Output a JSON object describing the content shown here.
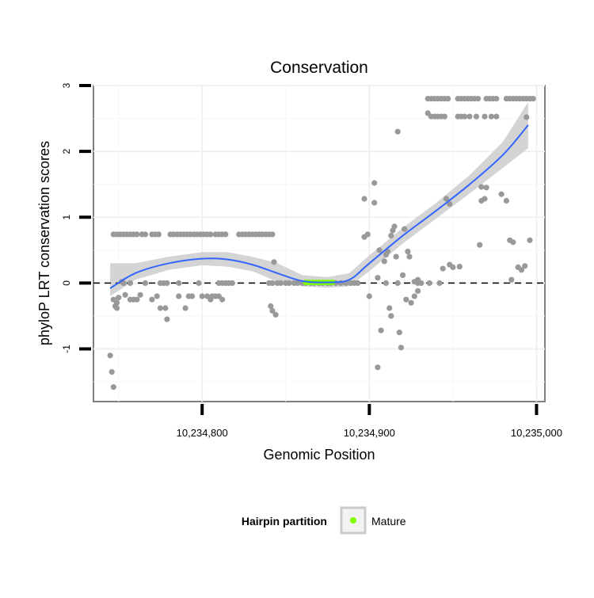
{
  "chart_data": {
    "type": "scatter",
    "title": "Conservation",
    "xlabel": "Genomic Position",
    "ylabel": "phyloP LRT conservation scores",
    "xlim": [
      10234735,
      10235005
    ],
    "ylim": [
      -1.8,
      3.0
    ],
    "x_ticks": [
      10234800,
      10234900,
      10235000
    ],
    "x_tick_labels": [
      "10,234,800",
      "10,234,900",
      "10,235,000"
    ],
    "y_ticks": [
      -1,
      0,
      1,
      2,
      3
    ],
    "y_tick_labels": [
      "-1",
      "0",
      "1",
      "2",
      "3"
    ],
    "grid": true,
    "reference_line": {
      "y": 0,
      "style": "dashed"
    },
    "series": [
      {
        "kind": "points",
        "color": "#999999",
        "points": [
          [
            10234747,
            0.74
          ],
          [
            10234749,
            0.74
          ],
          [
            10234751,
            0.74
          ],
          [
            10234753,
            0.74
          ],
          [
            10234755,
            0.74
          ],
          [
            10234757,
            0.74
          ],
          [
            10234759,
            0.74
          ],
          [
            10234761,
            0.74
          ],
          [
            10234764,
            0.74
          ],
          [
            10234766,
            0.74
          ],
          [
            10234770,
            0.74
          ],
          [
            10234772,
            0.74
          ],
          [
            10234774,
            0.74
          ],
          [
            10234781,
            0.74
          ],
          [
            10234783,
            0.74
          ],
          [
            10234785,
            0.74
          ],
          [
            10234787,
            0.74
          ],
          [
            10234789,
            0.74
          ],
          [
            10234791,
            0.74
          ],
          [
            10234793,
            0.74
          ],
          [
            10234795,
            0.74
          ],
          [
            10234797,
            0.74
          ],
          [
            10234799,
            0.74
          ],
          [
            10234801,
            0.74
          ],
          [
            10234803,
            0.74
          ],
          [
            10234805,
            0.74
          ],
          [
            10234808,
            0.74
          ],
          [
            10234810,
            0.74
          ],
          [
            10234812,
            0.74
          ],
          [
            10234814,
            0.74
          ],
          [
            10234822,
            0.74
          ],
          [
            10234824,
            0.74
          ],
          [
            10234826,
            0.74
          ],
          [
            10234828,
            0.74
          ],
          [
            10234830,
            0.74
          ],
          [
            10234832,
            0.74
          ],
          [
            10234834,
            0.74
          ],
          [
            10234836,
            0.74
          ],
          [
            10234838,
            0.74
          ],
          [
            10234840,
            0.74
          ],
          [
            10234842,
            0.74
          ],
          [
            10234753,
            0.0
          ],
          [
            10234757,
            0.0
          ],
          [
            10234766,
            0.0
          ],
          [
            10234775,
            0.0
          ],
          [
            10234777,
            0.0
          ],
          [
            10234779,
            0.0
          ],
          [
            10234786,
            0.0
          ],
          [
            10234798,
            0.0
          ],
          [
            10234810,
            0.0
          ],
          [
            10234812,
            0.0
          ],
          [
            10234814,
            0.0
          ],
          [
            10234816,
            0.0
          ],
          [
            10234818,
            0.0
          ],
          [
            10234840,
            0.0
          ],
          [
            10234842,
            0.0
          ],
          [
            10234845,
            0.0
          ],
          [
            10234847,
            0.0
          ],
          [
            10234850,
            0.0
          ],
          [
            10234852,
            0.0
          ],
          [
            10234855,
            0.0
          ],
          [
            10234857,
            0.0
          ],
          [
            10234860,
            0.0
          ],
          [
            10234862,
            0.0
          ],
          [
            10234865,
            0.0
          ],
          [
            10234867,
            0.0
          ],
          [
            10234870,
            0.0
          ],
          [
            10234872,
            0.0
          ],
          [
            10234875,
            0.0
          ],
          [
            10234877,
            0.0
          ],
          [
            10234880,
            0.0
          ],
          [
            10234883,
            0.0
          ],
          [
            10234886,
            0.0
          ],
          [
            10234889,
            0.0
          ],
          [
            10234891,
            0.0
          ],
          [
            10234893,
            0.0
          ],
          [
            10234910,
            0.0
          ],
          [
            10234917,
            0.0
          ],
          [
            10234929,
            0.0
          ],
          [
            10234931,
            0.0
          ],
          [
            10234942,
            0.0
          ],
          [
            10234747,
            -0.25
          ],
          [
            10234749,
            -0.3
          ],
          [
            10234750,
            -0.22
          ],
          [
            10234754,
            -0.18
          ],
          [
            10234757,
            -0.25
          ],
          [
            10234759,
            -0.25
          ],
          [
            10234761,
            -0.25
          ],
          [
            10234763,
            -0.18
          ],
          [
            10234770,
            -0.25
          ],
          [
            10234773,
            -0.2
          ],
          [
            10234775,
            -0.38
          ],
          [
            10234778,
            -0.38
          ],
          [
            10234779,
            -0.55
          ],
          [
            10234786,
            -0.2
          ],
          [
            10234790,
            -0.38
          ],
          [
            10234792,
            -0.2
          ],
          [
            10234794,
            -0.2
          ],
          [
            10234800,
            -0.2
          ],
          [
            10234803,
            -0.2
          ],
          [
            10234805,
            -0.25
          ],
          [
            10234806,
            -0.2
          ],
          [
            10234808,
            -0.2
          ],
          [
            10234810,
            -0.2
          ],
          [
            10234812,
            -0.25
          ],
          [
            10234841,
            -0.35
          ],
          [
            10234842,
            -0.42
          ],
          [
            10234844,
            -0.48
          ],
          [
            10234843,
            0.32
          ],
          [
            10234745,
            -1.1
          ],
          [
            10234746,
            -1.35
          ],
          [
            10234747,
            -1.58
          ],
          [
            10234748,
            -0.35
          ],
          [
            10234749,
            -0.38
          ],
          [
            10234752,
            0.02
          ],
          [
            10234897,
            0.7
          ],
          [
            10234899,
            0.74
          ],
          [
            10234897,
            1.28
          ],
          [
            10234903,
            1.22
          ],
          [
            10234903,
            1.52
          ],
          [
            10234906,
            0.5
          ],
          [
            10234905,
            0.08
          ],
          [
            10234900,
            -0.2
          ],
          [
            10234905,
            -1.28
          ],
          [
            10234907,
            -0.72
          ],
          [
            10234909,
            0.33
          ],
          [
            10234910,
            0.43
          ],
          [
            10234911,
            0.48
          ],
          [
            10234912,
            -0.38
          ],
          [
            10234913,
            -0.5
          ],
          [
            10234913,
            0.72
          ],
          [
            10234914,
            0.8
          ],
          [
            10234915,
            0.86
          ],
          [
            10234916,
            0.4
          ],
          [
            10234918,
            -0.75
          ],
          [
            10234919,
            -0.98
          ],
          [
            10234917,
            2.3
          ],
          [
            10234920,
            0.12
          ],
          [
            10234921,
            0.82
          ],
          [
            10234923,
            0.48
          ],
          [
            10234924,
            0.4
          ],
          [
            10234922,
            -0.25
          ],
          [
            10234925,
            -0.3
          ],
          [
            10234927,
            -0.2
          ],
          [
            10234929,
            0.05
          ],
          [
            10234927,
            0.02
          ],
          [
            10234929,
            -0.12
          ],
          [
            10234936,
            0.0
          ],
          [
            10234944,
            0.22
          ],
          [
            10234948,
            0.28
          ],
          [
            10234950,
            0.24
          ],
          [
            10234946,
            1.28
          ],
          [
            10234948,
            1.2
          ],
          [
            10234954,
            0.25
          ],
          [
            10234966,
            0.58
          ],
          [
            10234967,
            1.25
          ],
          [
            10234967,
            1.46
          ],
          [
            10234969,
            1.28
          ],
          [
            10234970,
            1.45
          ],
          [
            10234979,
            1.35
          ],
          [
            10234982,
            1.25
          ],
          [
            10234984,
            0.65
          ],
          [
            10234986,
            0.62
          ],
          [
            10234985,
            0.05
          ],
          [
            10234989,
            0.24
          ],
          [
            10234991,
            0.2
          ],
          [
            10234993,
            0.26
          ],
          [
            10234996,
            0.65
          ],
          [
            10234994,
            2.52
          ],
          [
            10234935,
            2.8
          ],
          [
            10234937,
            2.8
          ],
          [
            10234939,
            2.8
          ],
          [
            10234941,
            2.8
          ],
          [
            10234943,
            2.8
          ],
          [
            10234945,
            2.8
          ],
          [
            10234947,
            2.8
          ],
          [
            10234953,
            2.8
          ],
          [
            10234955,
            2.8
          ],
          [
            10234957,
            2.8
          ],
          [
            10234959,
            2.8
          ],
          [
            10234961,
            2.8
          ],
          [
            10234963,
            2.8
          ],
          [
            10234965,
            2.8
          ],
          [
            10234970,
            2.8
          ],
          [
            10234972,
            2.8
          ],
          [
            10234974,
            2.8
          ],
          [
            10234976,
            2.8
          ],
          [
            10234982,
            2.8
          ],
          [
            10234984,
            2.8
          ],
          [
            10234986,
            2.8
          ],
          [
            10234988,
            2.8
          ],
          [
            10234990,
            2.8
          ],
          [
            10234992,
            2.8
          ],
          [
            10234994,
            2.8
          ],
          [
            10234996,
            2.8
          ],
          [
            10234998,
            2.8
          ],
          [
            10234935,
            2.58
          ],
          [
            10234937,
            2.53
          ],
          [
            10234939,
            2.53
          ],
          [
            10234941,
            2.53
          ],
          [
            10234943,
            2.53
          ],
          [
            10234945,
            2.53
          ],
          [
            10234953,
            2.53
          ],
          [
            10234955,
            2.53
          ],
          [
            10234957,
            2.53
          ],
          [
            10234960,
            2.53
          ],
          [
            10234964,
            2.53
          ],
          [
            10234969,
            2.53
          ],
          [
            10234973,
            2.53
          ],
          [
            10234976,
            2.53
          ]
        ]
      },
      {
        "kind": "points",
        "name": "Mature",
        "color": "#7fff00",
        "points": [
          [
            10234862,
            0.01
          ],
          [
            10234864,
            0.01
          ],
          [
            10234866,
            0.01
          ],
          [
            10234868,
            0.01
          ],
          [
            10234870,
            0.01
          ],
          [
            10234872,
            0.01
          ],
          [
            10234874,
            0.01
          ],
          [
            10234876,
            0.01
          ],
          [
            10234878,
            0.01
          ]
        ]
      },
      {
        "kind": "smooth",
        "color": "#3366ff",
        "band_color": "#cccccc",
        "x": [
          10234745,
          10234760,
          10234780,
          10234800,
          10234815,
          10234830,
          10234845,
          10234860,
          10234875,
          10234888,
          10234900,
          10234920,
          10234940,
          10234960,
          10234980,
          10234995
        ],
        "y": [
          -0.08,
          0.15,
          0.3,
          0.37,
          0.36,
          0.28,
          0.15,
          0.03,
          0.01,
          0.05,
          0.3,
          0.72,
          1.1,
          1.5,
          1.95,
          2.4
        ],
        "lower": [
          -0.2,
          0.05,
          0.2,
          0.27,
          0.25,
          0.18,
          0.02,
          -0.05,
          -0.07,
          -0.05,
          0.18,
          0.6,
          0.98,
          1.36,
          1.75,
          2.05
        ],
        "upper": [
          0.3,
          0.3,
          0.4,
          0.47,
          0.47,
          0.4,
          0.3,
          0.12,
          0.09,
          0.15,
          0.42,
          0.84,
          1.22,
          1.64,
          2.15,
          2.75
        ]
      }
    ],
    "legend": {
      "title": "Hairpin partition",
      "position": "bottom",
      "entries": [
        {
          "label": "Mature",
          "color": "#7fff00"
        }
      ]
    }
  }
}
